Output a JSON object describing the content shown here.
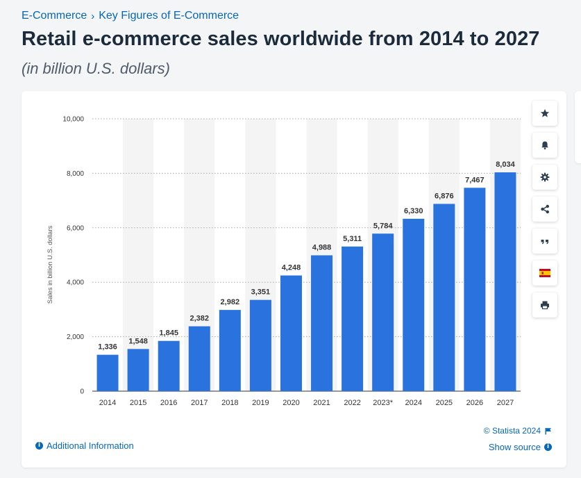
{
  "breadcrumb": {
    "parent": "E-Commerce",
    "separator": "›",
    "current": "Key Figures of E-Commerce"
  },
  "header": {
    "title": "Retail e-commerce sales worldwide from 2014 to 2027",
    "subtitle": "(in billion U.S. dollars)"
  },
  "sidebar": {
    "items": [
      {
        "name": "star-icon"
      },
      {
        "name": "bell-icon"
      },
      {
        "name": "gear-icon"
      },
      {
        "name": "share-icon"
      },
      {
        "name": "quote-icon"
      },
      {
        "name": "spanish-flag-icon"
      },
      {
        "name": "print-icon"
      }
    ]
  },
  "footer": {
    "additional_info": "Additional Information",
    "copyright": "© Statista 2024",
    "show_source": "Show source"
  },
  "colors": {
    "bar": "#2a72dd",
    "accent": "#0666b7",
    "title": "#1c2b3b",
    "band": "#f4f4f5",
    "grid": "#a8a8a8"
  },
  "chart_data": {
    "type": "bar",
    "categories": [
      "2014",
      "2015",
      "2016",
      "2017",
      "2018",
      "2019",
      "2020",
      "2021",
      "2022",
      "2023*",
      "2024",
      "2025",
      "2026",
      "2027"
    ],
    "values": [
      1336,
      1548,
      1845,
      2382,
      2982,
      3351,
      4248,
      4988,
      5311,
      5784,
      6330,
      6876,
      7467,
      8034
    ],
    "value_labels": [
      "1,336",
      "1,548",
      "1,845",
      "2,382",
      "2,982",
      "3,351",
      "4,248",
      "4,988",
      "5,311",
      "5,784",
      "6,330",
      "6,876",
      "7,467",
      "8,034"
    ],
    "ylabel": "Sales in billion U.S. dollars",
    "xlabel": "",
    "ylim": [
      0,
      10000
    ],
    "yticks": [
      0,
      2000,
      4000,
      6000,
      8000,
      10000
    ],
    "ytick_labels": [
      "0",
      "2,000",
      "4,000",
      "6,000",
      "8,000",
      "10,000"
    ],
    "grid": true,
    "legend": "none"
  }
}
